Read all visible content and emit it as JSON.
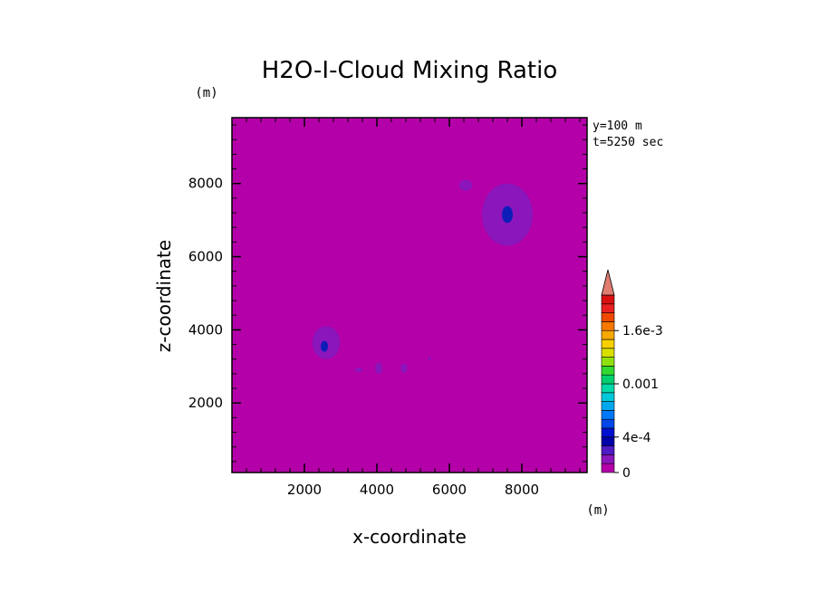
{
  "chart_data": {
    "type": "contour",
    "title": "H2O-I-Cloud Mixing Ratio",
    "xlabel": "x-coordinate",
    "ylabel": "z-coordinate",
    "x_unit": "(m)",
    "y_unit": "(m)",
    "xlim": [
      0,
      9800
    ],
    "ylim": [
      100,
      9800
    ],
    "x_ticks": [
      {
        "value": 2000,
        "label": "2000"
      },
      {
        "value": 4000,
        "label": "4000"
      },
      {
        "value": 6000,
        "label": "6000"
      },
      {
        "value": 8000,
        "label": "8000"
      }
    ],
    "y_ticks": [
      {
        "value": 2000,
        "label": "2000"
      },
      {
        "value": 4000,
        "label": "4000"
      },
      {
        "value": 6000,
        "label": "6000"
      },
      {
        "value": 8000,
        "label": "8000"
      }
    ],
    "annotations": [
      "y=100 m",
      "t=5250 sec"
    ],
    "background_level_color": "#b400a8",
    "features": [
      {
        "name": "cloud-upper-right",
        "cx": 7600,
        "cy": 7150,
        "rx": 700,
        "ry": 850,
        "level_color": "#8a16bc"
      },
      {
        "name": "cloud-upper-right-core",
        "cx": 7600,
        "cy": 7150,
        "rx": 150,
        "ry": 230,
        "level_color": "#0d1eb8"
      },
      {
        "name": "cloud-upper-small",
        "cx": 6450,
        "cy": 7950,
        "rx": 180,
        "ry": 150,
        "level_color": "#8a16bc"
      },
      {
        "name": "cloud-left",
        "cx": 2600,
        "cy": 3650,
        "rx": 380,
        "ry": 450,
        "level_color": "#8a16bc"
      },
      {
        "name": "cloud-left-core",
        "cx": 2550,
        "cy": 3550,
        "rx": 100,
        "ry": 150,
        "level_color": "#0d1eb8"
      },
      {
        "name": "cloud-patch-1",
        "cx": 3500,
        "cy": 2900,
        "rx": 100,
        "ry": 60,
        "level_color": "#8a16bc"
      },
      {
        "name": "cloud-patch-2",
        "cx": 4050,
        "cy": 2950,
        "rx": 100,
        "ry": 150,
        "level_color": "#8a16bc"
      },
      {
        "name": "cloud-patch-3",
        "cx": 4750,
        "cy": 2950,
        "rx": 90,
        "ry": 130,
        "level_color": "#8a16bc"
      },
      {
        "name": "cloud-patch-4",
        "cx": 5450,
        "cy": 3220,
        "rx": 40,
        "ry": 50,
        "level_color": "#8a16bc"
      }
    ],
    "colorbar": {
      "labels": [
        {
          "value": 0,
          "label": "0"
        },
        {
          "value": 0.0004,
          "label": "4e-4"
        },
        {
          "value": 0.001,
          "label": "0.001"
        },
        {
          "value": 0.0016,
          "label": "1.6e-3"
        }
      ],
      "levels": [
        0,
        0.0001,
        0.0002,
        0.0003,
        0.0004,
        0.0005,
        0.0006,
        0.0007,
        0.0008,
        0.0009,
        0.001,
        0.0011,
        0.0012,
        0.0013,
        0.0014,
        0.0015,
        0.0016,
        0.0017,
        0.0018,
        0.0019,
        0.002
      ],
      "colors": [
        "#b400a8",
        "#8a16bc",
        "#4e1ac4",
        "#0000a8",
        "#0010d0",
        "#0048e8",
        "#0078f8",
        "#00a8f0",
        "#00c8d8",
        "#00d8a8",
        "#00d070",
        "#30d830",
        "#90e010",
        "#d8e000",
        "#f8d000",
        "#f8a800",
        "#f87800",
        "#f04800",
        "#e82020",
        "#d81010"
      ],
      "extend_color": "#e07c70"
    }
  }
}
